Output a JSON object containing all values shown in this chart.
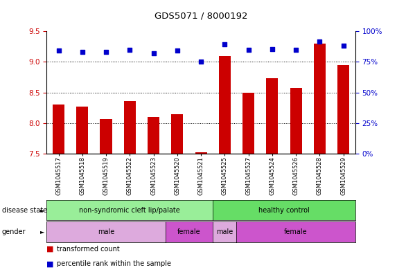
{
  "title": "GDS5071 / 8000192",
  "samples": [
    "GSM1045517",
    "GSM1045518",
    "GSM1045519",
    "GSM1045522",
    "GSM1045523",
    "GSM1045520",
    "GSM1045521",
    "GSM1045525",
    "GSM1045527",
    "GSM1045524",
    "GSM1045526",
    "GSM1045528",
    "GSM1045529"
  ],
  "bar_values": [
    8.3,
    8.27,
    8.07,
    8.36,
    8.1,
    8.15,
    7.52,
    9.1,
    8.5,
    8.73,
    8.57,
    9.3,
    8.95
  ],
  "dot_values": [
    9.18,
    9.16,
    9.16,
    9.2,
    9.14,
    9.18,
    9.01,
    9.29,
    9.2,
    9.21,
    9.2,
    9.33,
    9.27
  ],
  "bar_color": "#cc0000",
  "dot_color": "#0000cc",
  "ylim_left": [
    7.5,
    9.5
  ],
  "ylim_right": [
    0,
    100
  ],
  "yticks_left": [
    7.5,
    8.0,
    8.5,
    9.0,
    9.5
  ],
  "yticks_right": [
    0,
    25,
    50,
    75,
    100
  ],
  "ytick_labels_right": [
    "0%",
    "25%",
    "50%",
    "75%",
    "100%"
  ],
  "disease_state_groups": [
    {
      "label": "non-syndromic cleft lip/palate",
      "start": 0,
      "end": 7,
      "color": "#99ee99"
    },
    {
      "label": "healthy control",
      "start": 7,
      "end": 13,
      "color": "#66dd66"
    }
  ],
  "gender_groups": [
    {
      "label": "male",
      "start": 0,
      "end": 5,
      "color": "#ddaadd"
    },
    {
      "label": "female",
      "start": 5,
      "end": 7,
      "color": "#cc55cc"
    },
    {
      "label": "male",
      "start": 7,
      "end": 8,
      "color": "#ddaadd"
    },
    {
      "label": "female",
      "start": 8,
      "end": 13,
      "color": "#cc55cc"
    }
  ],
  "legend_items": [
    {
      "label": "transformed count",
      "color": "#cc0000"
    },
    {
      "label": "percentile rank within the sample",
      "color": "#0000cc"
    }
  ],
  "background_color": "#ffffff",
  "bar_width": 0.5,
  "grid_yticks": [
    8.0,
    8.5,
    9.0
  ]
}
